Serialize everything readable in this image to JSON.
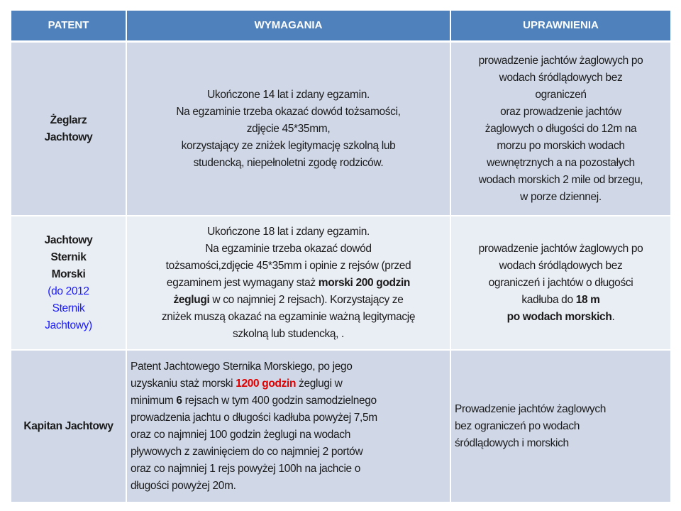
{
  "colors": {
    "header": "#4f81bd",
    "row_dark": "#d0d8e8",
    "row_light": "#e9edf4",
    "highlight_red": "#e00000",
    "note_blue": "#1a1aff"
  },
  "header": {
    "patent": "PATENT",
    "requirements": "WYMAGANIA",
    "permissions": "UPRAWNIENIA"
  },
  "rows": [
    {
      "patent": [
        [
          {
            "t": "Żeglarz",
            "b": true
          }
        ],
        [
          {
            "t": "Jachtowy",
            "b": true
          }
        ]
      ],
      "requirements": [
        [
          {
            "t": "Ukończone 14 lat i zdany egzamin."
          }
        ],
        [
          {
            "t": "Na egzaminie trzeba okazać dowód tożsamości,"
          }
        ],
        [
          {
            "t": "zdjęcie 45*35mm,"
          }
        ],
        [
          {
            "t": "korzystający ze zniżek legitymację szkolną lub"
          }
        ],
        [
          {
            "t": "studencką, niepełnoletni zgodę rodziców."
          }
        ]
      ],
      "permissions": [
        [
          {
            "t": "prowadzenie jachtów żaglowych po"
          }
        ],
        [
          {
            "t": "wodach śródlądowych bez"
          }
        ],
        [
          {
            "t": "ograniczeń"
          }
        ],
        [
          {
            "t": "oraz prowadzenie jachtów"
          }
        ],
        [
          {
            "t": "żaglowych o długości do 12m na"
          }
        ],
        [
          {
            "t": "morzu po morskich wodach"
          }
        ],
        [
          {
            "t": "wewnętrznych  a na pozostałych"
          }
        ],
        [
          {
            "t": "wodach morskich 2 mile od brzegu,"
          }
        ],
        [
          {
            "t": "w porze dziennej."
          }
        ]
      ]
    },
    {
      "patent": [
        [
          {
            "t": "Jachtowy",
            "b": true
          }
        ],
        [
          {
            "t": "Sternik",
            "b": true
          }
        ],
        [
          {
            "t": "Morski",
            "b": true
          }
        ],
        [
          {
            "t": " "
          }
        ],
        [
          {
            "t": "(do 2012",
            "c": "blue"
          }
        ],
        [
          {
            "t": "Sternik",
            "c": "blue"
          }
        ],
        [
          {
            "t": "Jachtowy)",
            "c": "blue"
          }
        ]
      ],
      "requirements": [
        [
          {
            "t": "Ukończone 18 lat i zdany egzamin."
          }
        ],
        [
          {
            "t": "Na egzaminie trzeba okazać dowód"
          }
        ],
        [
          {
            "t": "tożsamości,zdjęcie  45*35mm i opinie z rejsów (przed"
          }
        ],
        [
          {
            "t": "egzaminem jest wymagany staż "
          },
          {
            "t": "morski 200 godzin",
            "b": true
          }
        ],
        [
          {
            "t": "żeglugi",
            "b": true
          },
          {
            "t": " w co najmniej 2 rejsach). Korzystający ze"
          }
        ],
        [
          {
            "t": "zniżek muszą okazać na egzaminie ważną legitymację"
          }
        ],
        [
          {
            "t": "szkolną lub studencką, ."
          }
        ]
      ],
      "permissions": [
        [
          {
            "t": "prowadzenie jachtów żaglowych po"
          }
        ],
        [
          {
            "t": "wodach śródlądowych bez"
          }
        ],
        [
          {
            "t": "ograniczeń  i jachtów o długości"
          }
        ],
        [
          {
            "t": "kadłuba do "
          },
          {
            "t": "18 m",
            "b": true
          }
        ],
        [
          {
            "t": "po wodach morskich",
            "b": true
          },
          {
            "t": "."
          }
        ]
      ]
    },
    {
      "patent": [
        [
          {
            "t": "Kapitan Jachtowy",
            "b": true
          }
        ]
      ],
      "requirements": [
        [
          {
            "t": "Patent Jachtowego Sternika Morskiego, po jego"
          }
        ],
        [
          {
            "t": "uzyskaniu staż morski "
          },
          {
            "t": "1200 godzin",
            "b": true,
            "c": "red"
          },
          {
            "t": " żeglugi w"
          }
        ],
        [
          {
            "t": "minimum "
          },
          {
            "t": "6",
            "b": true
          },
          {
            "t": " rejsach w tym 400 godzin samodzielnego"
          }
        ],
        [
          {
            "t": "prowadzenia jachtu o długości kadłuba powyżej 7,5m"
          }
        ],
        [
          {
            "t": "oraz co najmniej 100 godzin żeglugi na wodach"
          }
        ],
        [
          {
            "t": "pływowych z zawinięciem do co najmniej 2 portów"
          }
        ],
        [
          {
            "t": "oraz co najmniej 1 rejs powyżej  100h na jachcie o"
          }
        ],
        [
          {
            "t": "długości powyżej 20m."
          }
        ]
      ],
      "permissions": [
        [
          {
            "t": "Prowadzenie jachtów żaglowych"
          }
        ],
        [
          {
            "t": "bez ograniczeń po wodach"
          }
        ],
        [
          {
            "t": "śródlądowych i morskich"
          }
        ]
      ]
    }
  ]
}
